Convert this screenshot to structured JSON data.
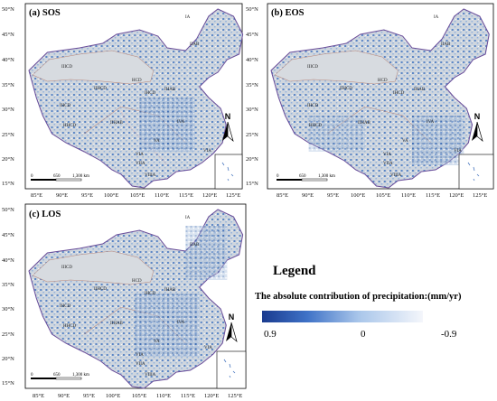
{
  "panels": [
    {
      "id": "a",
      "title": "(a) SOS"
    },
    {
      "id": "b",
      "title": "(b) EOS"
    },
    {
      "id": "c",
      "title": "(c) LOS"
    }
  ],
  "lat_labels": [
    "50°N",
    "45°N",
    "40°N",
    "35°N",
    "30°N",
    "25°N",
    "20°N",
    "15°N"
  ],
  "lon_labels": [
    "85°E",
    "90°E",
    "95°E",
    "100°E",
    "105°E",
    "110°E",
    "115°E",
    "120°E",
    "125°E"
  ],
  "scalebar": {
    "ticks": [
      "0",
      "650",
      "1,300 km"
    ]
  },
  "north_label": "N",
  "regions": {
    "IA": "IA",
    "IIAB": "IIAB",
    "HCD": "HCD",
    "IIICD": "IIICD",
    "IIHCD": "IIHCD",
    "IHCD": "IHCD",
    "HHCD": "HHCD",
    "IHAB": "IHAB",
    "IIHAB": "IIHAB",
    "IVA": "IVA",
    "VA": "VA",
    "VIA": "VIA",
    "VIIA": "VIIA",
    "VIA2": "VIA",
    "VIIIA": "VIIIA"
  },
  "legend": {
    "title": "Legend",
    "subtitle": "The absolute contribution of precipitation:(mm/yr)",
    "max_label": "0.9",
    "mid_label": "0",
    "min_label": "-0.9",
    "colors": {
      "high": "#1a3b8f",
      "mid": "#a9c6ea",
      "low": "#f4f6fb"
    }
  }
}
